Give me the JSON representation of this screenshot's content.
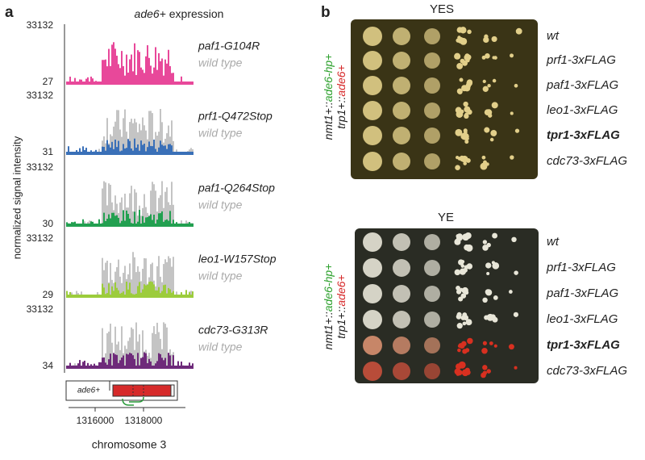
{
  "panel_a": {
    "label": "a",
    "title_gene": "ade6+",
    "title_rest": "expression",
    "y_axis_label": "normalized signal intensity",
    "tracks": [
      {
        "max": 33132,
        "min": 27,
        "mutant": "paf1-G104R",
        "wild": "wild type",
        "color": "#e8489a"
      },
      {
        "max": 33132,
        "min": 31,
        "mutant": "prf1-Q472Stop",
        "wild": "wild type",
        "color": "#3a70b8"
      },
      {
        "max": 33132,
        "min": 30,
        "mutant": "paf1-Q264Stop",
        "wild": "wild type",
        "color": "#22a050"
      },
      {
        "max": 33132,
        "min": 29,
        "mutant": "leo1-W157Stop",
        "wild": "wild type",
        "color": "#9ccc3c"
      },
      {
        "max": 33132,
        "min": 34,
        "mutant": "cdc73-G313R",
        "wild": "wild type",
        "color": "#6e2a7a"
      }
    ],
    "gene_label": "ade6+",
    "x_ticks": [
      "1316000",
      "1318000"
    ],
    "x_axis_label": "chromosome 3"
  },
  "panel_b": {
    "label": "b",
    "side_label": {
      "line1_black": "nmt1+::",
      "line1_color": "ade6-hp+",
      "line2_black": "trp1+::",
      "line2_color": "ade6+"
    },
    "plates": [
      {
        "title": "YES",
        "rows": [
          "wt",
          "prf1-3xFLAG",
          "paf1-3xFLAG",
          "leo1-3xFLAG",
          "tpr1-3xFLAG",
          "cdc73-3xFLAG"
        ],
        "bold_row": 4
      },
      {
        "title": "YE",
        "rows": [
          "wt",
          "prf1-3xFLAG",
          "paf1-3xFLAG",
          "leo1-3xFLAG",
          "tpr1-3xFLAG",
          "cdc73-3xFLAG"
        ],
        "bold_row": 4
      }
    ]
  }
}
